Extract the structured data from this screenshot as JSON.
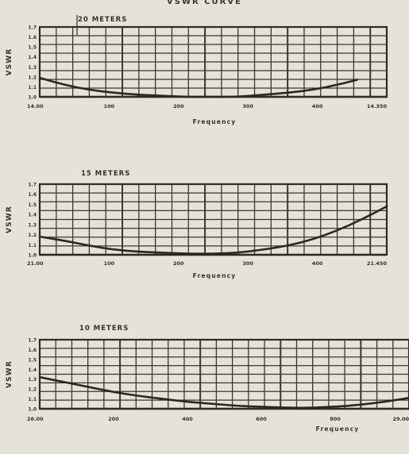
{
  "page": {
    "title": "VSWR CURVE"
  },
  "chart_data": [
    {
      "type": "line",
      "title": "20 METERS",
      "ylabel": "VSWR",
      "xlabel": "Frequency",
      "ytick_labels": [
        "1.0",
        "1.1",
        "1.2",
        "1.3",
        "1.4",
        "1.5",
        "1.6",
        "1.7"
      ],
      "xtick_labels": [
        "14.00",
        "100",
        "200",
        "300",
        "400",
        "14.350"
      ],
      "xlim": [
        0,
        14
      ],
      "ylim": [
        1.0,
        1.7
      ],
      "grid": true,
      "series": [
        {
          "x": [
            0,
            1,
            2,
            3,
            4,
            5,
            6,
            7,
            8,
            9,
            10,
            11,
            12,
            12.8
          ],
          "values": [
            1.19,
            1.12,
            1.07,
            1.04,
            1.02,
            1.01,
            1.0,
            1.0,
            1.0,
            1.02,
            1.04,
            1.07,
            1.12,
            1.17
          ]
        }
      ]
    },
    {
      "type": "line",
      "title": "15 METERS",
      "ylabel": "VSWR",
      "xlabel": "Frequency",
      "ytick_labels": [
        "1.0",
        "1.1",
        "1.2",
        "1.3",
        "1.4",
        "1.5",
        "1.6",
        "1.7"
      ],
      "xtick_labels": [
        "21.00",
        "100",
        "200",
        "300",
        "400",
        "21.450"
      ],
      "xlim": [
        0,
        14
      ],
      "ylim": [
        1.0,
        1.7
      ],
      "grid": true,
      "series": [
        {
          "x": [
            0,
            1,
            2,
            3,
            4,
            5,
            6,
            7,
            8,
            9,
            10,
            11,
            12,
            13,
            14
          ],
          "values": [
            1.18,
            1.14,
            1.09,
            1.05,
            1.03,
            1.02,
            1.01,
            1.01,
            1.02,
            1.05,
            1.09,
            1.15,
            1.24,
            1.35,
            1.48
          ]
        }
      ]
    },
    {
      "type": "line",
      "title": "10 METERS",
      "ylabel": "VSWR",
      "xlabel": "Frequency",
      "ytick_labels": [
        "1.0",
        "1.1",
        "1.2",
        "1.3",
        "1.4",
        "1.5",
        "1.6",
        "1.7"
      ],
      "xtick_labels": [
        "28.00",
        "200",
        "400",
        "600",
        "800",
        "29.00"
      ],
      "xlim": [
        0,
        15
      ],
      "ylim": [
        1.0,
        1.7
      ],
      "grid": true,
      "series": [
        {
          "x": [
            0,
            1,
            2,
            3,
            4,
            5,
            6,
            7,
            8,
            9,
            10,
            11,
            12,
            13,
            14,
            15
          ],
          "values": [
            1.32,
            1.27,
            1.22,
            1.17,
            1.13,
            1.1,
            1.07,
            1.05,
            1.03,
            1.02,
            1.01,
            1.01,
            1.02,
            1.04,
            1.07,
            1.11
          ]
        }
      ]
    }
  ]
}
